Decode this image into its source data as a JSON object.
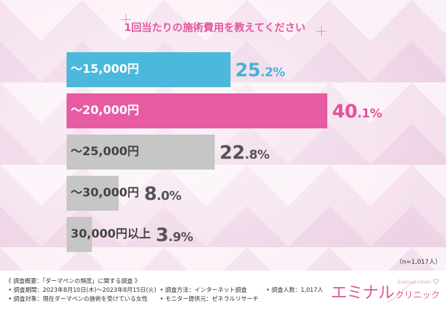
{
  "colors": {
    "title": "#e2589b",
    "accent_blue": "#4cb8dc",
    "accent_pink": "#e75ba3",
    "bar_gray": "#c6c6c6",
    "logo_pink": "#df5a9b"
  },
  "icons": {
    "sparkle": "sparkle-icon",
    "heart": "heart-icon"
  },
  "chart_data": {
    "type": "bar",
    "orientation": "horizontal",
    "title": "1回当たりの施術費用を教えてください",
    "categories": [
      "〜15,000円",
      "〜20,000円",
      "〜25,000円",
      "〜30,000円",
      "30,000円以上"
    ],
    "values": [
      25.2,
      40.1,
      22.8,
      8.0,
      3.9
    ],
    "data_labels": [
      "25.2%",
      "40.1%",
      "22.8%",
      "8.0%",
      "3.9%"
    ],
    "unit": "%",
    "bar_colors": [
      "#4cb8dc",
      "#e75ba3",
      "#c6c6c6",
      "#c6c6c6",
      "#c6c6c6"
    ],
    "label_colors": [
      "#ffffff",
      "#ffffff",
      "#444444",
      "#444444",
      "#444444"
    ],
    "value_colors": [
      "#48b1d9",
      "#e4529c",
      "#555555",
      "#555555",
      "#555555"
    ],
    "sample_note": "（n=1,017人）",
    "grid": false,
    "legend": "none"
  },
  "survey": {
    "heading": "《 調査概要：「ダーマペンの頻度」に関する調査 》",
    "period": "調査期間：2023年8月10日(木)〜2023年8月15日(火)",
    "target": "調査対象：現在ダーマペンの施術を受けている女性",
    "method": "調査方法：インターネット調査",
    "provider": "モニター提供元：ゼネラルリサーチ",
    "respondents": "調査人数：1,017人"
  },
  "logo": {
    "script": "Eminal clinic",
    "main": "エミナル",
    "sub": "クリニック"
  }
}
